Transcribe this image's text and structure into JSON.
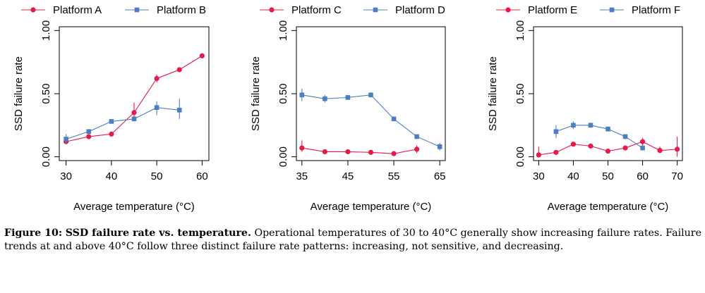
{
  "chart_data": [
    {
      "type": "line",
      "xlabel": "Average temperature (°C)",
      "ylabel": "SSD failure rate",
      "xlim": [
        28.5,
        61.5
      ],
      "ylim": [
        -0.03,
        1.03
      ],
      "xticks": [
        "30",
        "40",
        "50",
        "60"
      ],
      "xtick_values": [
        30,
        40,
        50,
        60
      ],
      "yticks": [
        "0.00",
        "0.50",
        "1.00"
      ],
      "ytick_values": [
        0,
        0.5,
        1
      ],
      "legend": "top",
      "series": [
        {
          "name": "Platform A",
          "color": "#e8194a",
          "marker": "circle",
          "x": [
            30,
            35,
            40,
            45,
            50,
            55,
            60
          ],
          "y": [
            0.12,
            0.16,
            0.18,
            0.35,
            0.62,
            0.69,
            0.8
          ],
          "lo": [
            0.1,
            0.15,
            0.16,
            0.28,
            0.59,
            0.67,
            0.78
          ],
          "hi": [
            0.14,
            0.17,
            0.2,
            0.43,
            0.65,
            0.71,
            0.82
          ]
        },
        {
          "name": "Platform B",
          "color": "#4b7fc1",
          "marker": "square",
          "x": [
            30,
            35,
            40,
            45,
            50,
            55
          ],
          "y": [
            0.14,
            0.2,
            0.28,
            0.3,
            0.39,
            0.37
          ],
          "lo": [
            0.1,
            0.18,
            0.27,
            0.28,
            0.33,
            0.3
          ],
          "hi": [
            0.18,
            0.22,
            0.29,
            0.32,
            0.44,
            0.46
          ]
        }
      ]
    },
    {
      "type": "line",
      "xlabel": "Average temperature (°C)",
      "ylabel": "SSD failure rate",
      "xlim": [
        33.8,
        66.2
      ],
      "ylim": [
        -0.03,
        1.03
      ],
      "xticks": [
        "35",
        "45",
        "55",
        "65"
      ],
      "xtick_values": [
        35,
        45,
        55,
        65
      ],
      "yticks": [
        "0.00",
        "0.50",
        "1.00"
      ],
      "ytick_values": [
        0,
        0.5,
        1
      ],
      "legend": "top",
      "series": [
        {
          "name": "Platform C",
          "color": "#e8194a",
          "marker": "circle",
          "x": [
            35,
            40,
            45,
            50,
            55,
            60
          ],
          "y": [
            0.07,
            0.04,
            0.04,
            0.035,
            0.025,
            0.06
          ],
          "lo": [
            0.04,
            0.035,
            0.035,
            0.03,
            0.02,
            0.03
          ],
          "hi": [
            0.13,
            0.05,
            0.05,
            0.04,
            0.03,
            0.09
          ]
        },
        {
          "name": "Platform D",
          "color": "#4b7fc1",
          "marker": "square",
          "x": [
            35,
            40,
            45,
            50,
            55,
            60,
            65
          ],
          "y": [
            0.49,
            0.46,
            0.47,
            0.49,
            0.3,
            0.16,
            0.08
          ],
          "lo": [
            0.44,
            0.43,
            0.45,
            0.47,
            0.29,
            0.15,
            0.05
          ],
          "hi": [
            0.54,
            0.49,
            0.49,
            0.51,
            0.31,
            0.17,
            0.11
          ]
        }
      ]
    },
    {
      "type": "line",
      "xlabel": "Average temperature (°C)",
      "ylabel": "SSD failure rate",
      "xlim": [
        28.5,
        71.5
      ],
      "ylim": [
        -0.03,
        1.03
      ],
      "xticks": [
        "30",
        "40",
        "50",
        "60",
        "70"
      ],
      "xtick_values": [
        30,
        40,
        50,
        60,
        70
      ],
      "yticks": [
        "0.00",
        "0.50",
        "1.00"
      ],
      "ytick_values": [
        0,
        0.5,
        1
      ],
      "legend": "top",
      "series": [
        {
          "name": "Platform E",
          "color": "#e8194a",
          "marker": "circle",
          "x": [
            30,
            35,
            40,
            45,
            50,
            55,
            60,
            65,
            70
          ],
          "y": [
            0.015,
            0.035,
            0.1,
            0.085,
            0.045,
            0.07,
            0.12,
            0.05,
            0.06
          ],
          "lo": [
            0.0,
            0.025,
            0.09,
            0.075,
            0.04,
            0.06,
            0.09,
            0.03,
            0.0
          ],
          "hi": [
            0.08,
            0.045,
            0.11,
            0.095,
            0.05,
            0.08,
            0.15,
            0.08,
            0.16
          ]
        },
        {
          "name": "Platform F",
          "color": "#4b7fc1",
          "marker": "square",
          "x": [
            35,
            40,
            45,
            50,
            55,
            60
          ],
          "y": [
            0.2,
            0.25,
            0.25,
            0.22,
            0.16,
            0.07
          ],
          "lo": [
            0.15,
            0.22,
            0.23,
            0.2,
            0.14,
            0.05
          ],
          "hi": [
            0.25,
            0.28,
            0.27,
            0.24,
            0.18,
            0.09
          ]
        }
      ]
    }
  ],
  "caption": {
    "label": "Figure 10:",
    "title": "SSD failure rate vs. temperature.",
    "body": "Operational temperatures of 30 to 40°C generally show increasing failure rates. Failure trends at and above 40°C follow three distinct failure rate patterns: increasing, not sensitive, and decreasing."
  }
}
